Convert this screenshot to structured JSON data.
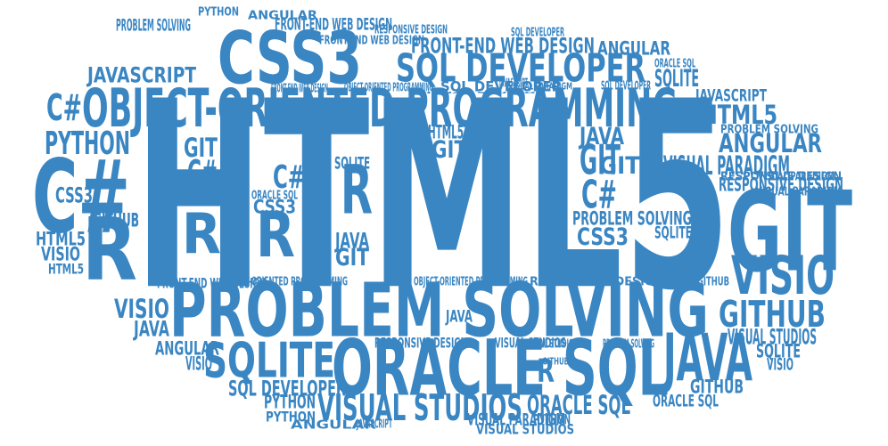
{
  "colors": {
    "word": "#3a86c3",
    "background": "#ffffff"
  },
  "words": [
    {
      "text": "HTML5"
    },
    {
      "text": "OBJECT-ORIENTED PROGRAMMING"
    },
    {
      "text": "PROBLEM SOLVING"
    },
    {
      "text": "ORACLE SQL"
    },
    {
      "text": "CSS3"
    },
    {
      "text": "SQL DEVELOPER"
    },
    {
      "text": "GIT"
    },
    {
      "text": "C#"
    },
    {
      "text": "R"
    },
    {
      "text": "R"
    },
    {
      "text": "R"
    },
    {
      "text": "R"
    },
    {
      "text": "R"
    },
    {
      "text": "JAVA"
    },
    {
      "text": "SQLITE"
    },
    {
      "text": "VISIO"
    },
    {
      "text": "GITHUB"
    },
    {
      "text": "VISUAL STUDIOS"
    },
    {
      "text": "FRONT-END WEB DESIGN"
    },
    {
      "text": "JAVASCRIPT"
    },
    {
      "text": "PYTHON"
    },
    {
      "text": "C#"
    },
    {
      "text": "HTML5"
    },
    {
      "text": "ANGULAR"
    },
    {
      "text": "VISUAL PARADIGM"
    },
    {
      "text": "RESPONSIVE DESIGN"
    },
    {
      "text": "C#"
    },
    {
      "text": "GIT"
    },
    {
      "text": "JAVA"
    },
    {
      "text": "CSS3"
    },
    {
      "text": "PROBLEM SOLVING"
    },
    {
      "text": "SQLITE"
    },
    {
      "text": "GITHUB"
    },
    {
      "text": "VISUAL STUDIOS"
    },
    {
      "text": "SQLITE"
    },
    {
      "text": "VISIO"
    },
    {
      "text": "JAVASCRIPT"
    },
    {
      "text": "SQLITE"
    },
    {
      "text": "ANGULAR"
    },
    {
      "text": "VISIO"
    },
    {
      "text": "SQL DEVELOPER"
    },
    {
      "text": "PYTHON"
    },
    {
      "text": "JAVA"
    },
    {
      "text": "VISIO"
    },
    {
      "text": "ANGULAR"
    },
    {
      "text": "C#"
    },
    {
      "text": "CSS3"
    },
    {
      "text": "GITHUB"
    },
    {
      "text": "HTML5"
    },
    {
      "text": "VISIO"
    },
    {
      "text": "HTML5"
    },
    {
      "text": "GIT"
    },
    {
      "text": "GIT"
    },
    {
      "text": "JAVA"
    },
    {
      "text": "C#"
    },
    {
      "text": "CSS3"
    },
    {
      "text": "SQLITE"
    },
    {
      "text": "HTML5"
    },
    {
      "text": "GIT"
    },
    {
      "text": "JAVA"
    },
    {
      "text": "GIT"
    },
    {
      "text": "ORACLE SQL"
    },
    {
      "text": "GITHUB"
    },
    {
      "text": "FRONT-END WEB DESIGN"
    },
    {
      "text": "ANGULAR"
    },
    {
      "text": "PYTHON"
    },
    {
      "text": "FRONT-END WEB DESIGN"
    },
    {
      "text": "VISUAL STUDIOS"
    },
    {
      "text": "RESPONSIVE DESIGN"
    },
    {
      "text": "PROBLEM SOLVING"
    },
    {
      "text": "PYTHON"
    },
    {
      "text": "SQL DEVELOPER"
    },
    {
      "text": "ORACLE SQL"
    },
    {
      "text": "SQL DEVELOPER"
    },
    {
      "text": "VISUAL STUDIOS"
    },
    {
      "text": "VISUAL PARADIGM"
    },
    {
      "text": "FRONT-END WEB DESIGN"
    },
    {
      "text": "OBJECT-ORIENTED PROGRAMMING"
    },
    {
      "text": "JAVASCRIPT"
    },
    {
      "text": "PROBLEM SOLVING"
    },
    {
      "text": "RESPONSIVE DESIGN"
    },
    {
      "text": "VISUAL PARADIGM"
    },
    {
      "text": "OBJECT-ORIENTED PROGRAMMING"
    },
    {
      "text": "ORACLE SQL"
    },
    {
      "text": "FRONT-END WEB DESIGN"
    },
    {
      "text": "OBJECT-ORIENTED PROGRAMMING"
    },
    {
      "text": "RESPONSIVE DESIGN"
    },
    {
      "text": "JAVASCRIPT"
    },
    {
      "text": "GITHUB"
    },
    {
      "text": "RESPONSIVE DESIGN"
    },
    {
      "text": "SQL DEVELOPER"
    },
    {
      "text": "VISUAL STUDIOS"
    },
    {
      "text": "PROBLEM SOLVING"
    },
    {
      "text": "GITHUB"
    },
    {
      "text": "VISUAL PARADIGM"
    },
    {
      "text": "ORACLE SQL"
    },
    {
      "text": "PYTHON"
    },
    {
      "text": "ANGULAR"
    },
    {
      "text": "JAVASCRIPT"
    },
    {
      "text": "VISUAL PARADIGM"
    },
    {
      "text": "VISUAL STUDIOS"
    }
  ]
}
